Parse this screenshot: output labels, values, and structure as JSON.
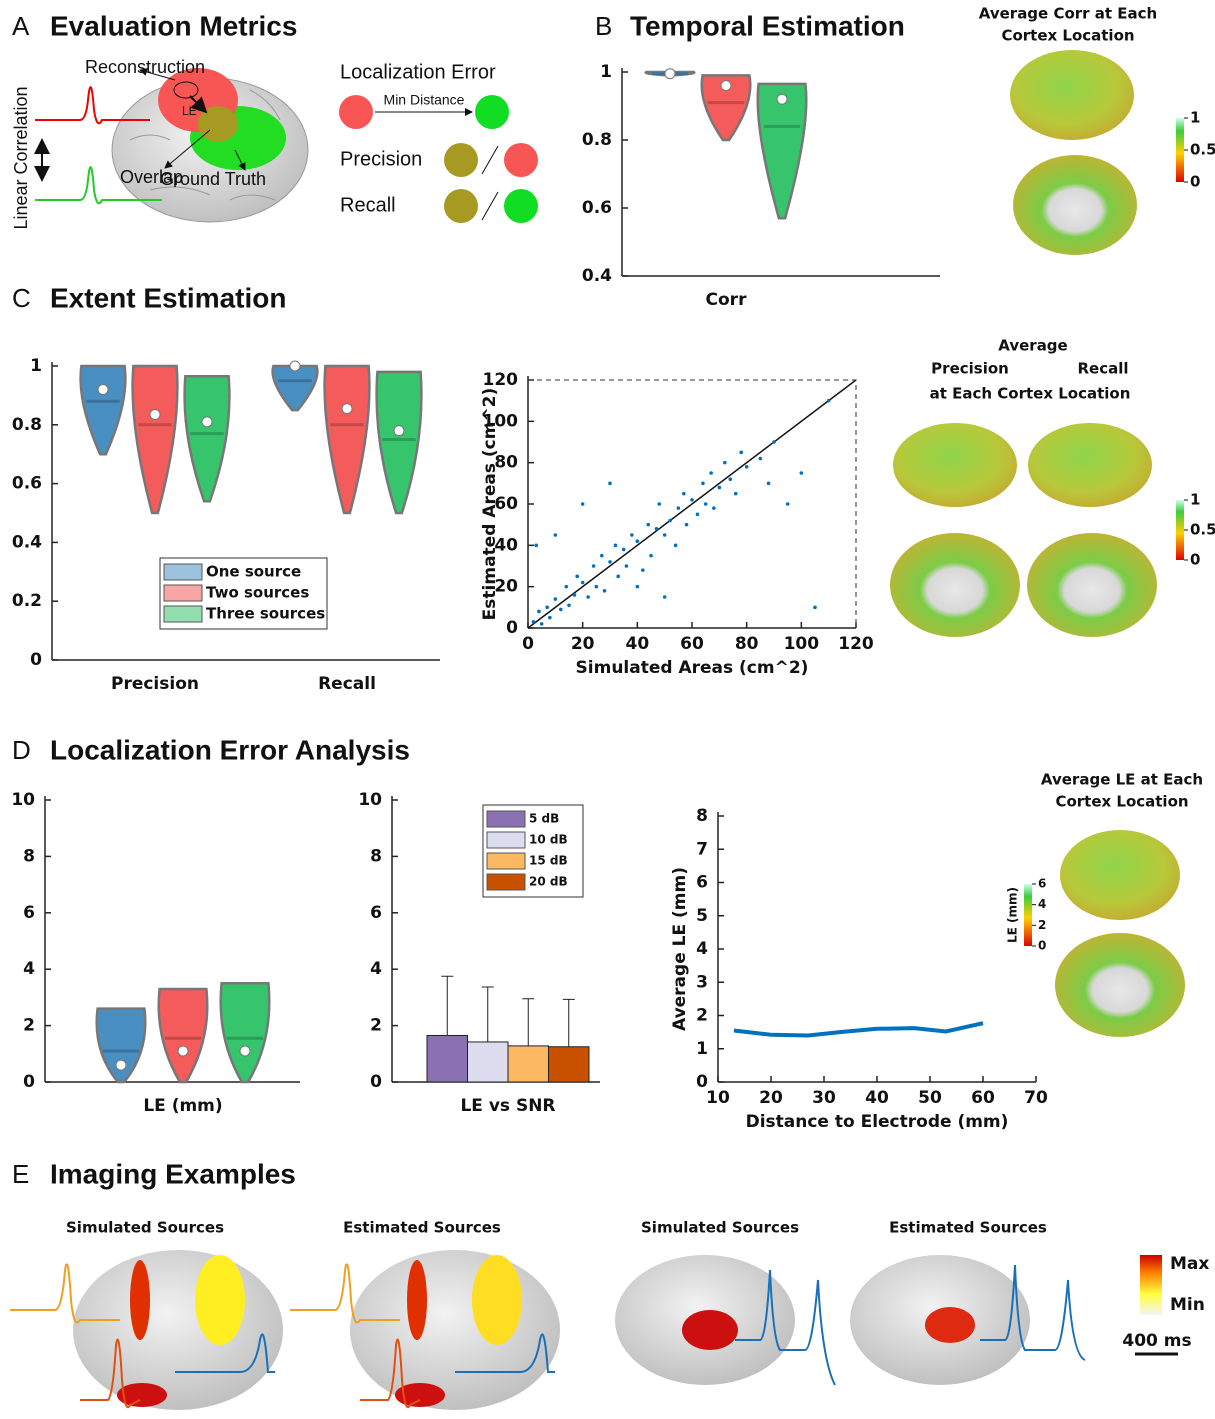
{
  "panels": [
    {
      "letter": "A",
      "title": "Evaluation Metrics"
    },
    {
      "letter": "B",
      "title": "Temporal Estimation"
    },
    {
      "letter": "C",
      "title": "Extent Estimation"
    },
    {
      "letter": "D",
      "title": "Localization Error Analysis"
    },
    {
      "letter": "E",
      "title": "Imaging Examples"
    }
  ],
  "diagram": {
    "reconstruction": "Reconstruction",
    "le": "LE",
    "overlap": "Overlap",
    "ground_truth": "Ground Truth",
    "linear_correlation": "Linear Correlation",
    "localization_error": "Localization Error",
    "min_distance": "Min Distance",
    "precision": "Precision",
    "recall": "Recall"
  },
  "maps": {
    "b": {
      "title_lines": [
        "Average Corr at Each",
        "Cortex Location"
      ],
      "colorbar_lim": [
        0,
        1
      ],
      "colorbar_ticks": [
        0,
        0.5,
        1
      ]
    },
    "c": {
      "title_lines": [
        "Average",
        "Precision",
        "Recall",
        "at Each Cortex Location"
      ],
      "colorbar_lim": [
        0,
        1
      ],
      "colorbar_ticks": [
        0,
        0.5,
        1
      ]
    },
    "d": {
      "title_lines": [
        "Average LE at Each",
        "Cortex Location"
      ],
      "colorbar_label": "LE (mm)",
      "colorbar_lim": [
        0,
        6
      ],
      "colorbar_ticks": [
        0,
        2,
        4,
        6
      ]
    }
  },
  "examples": {
    "titles": [
      "Simulated Sources",
      "Estimated Sources",
      "Simulated Sources",
      "Estimated Sources"
    ],
    "colorbar": [
      "Max",
      "Min"
    ],
    "scale": "400 ms"
  },
  "chart_data": [
    {
      "type": "violin",
      "categories": [
        "Corr"
      ],
      "ylim": [
        0.4,
        1
      ],
      "yticks": [
        0.4,
        0.6,
        0.8,
        1
      ],
      "series": [
        {
          "color": "#4a8fc2",
          "min": [
            0.99
          ],
          "max": [
            1
          ],
          "median": [
            0.995
          ],
          "mean": [
            0.995
          ]
        },
        {
          "color": "#f45b5b",
          "min": [
            0.8
          ],
          "max": [
            0.99
          ],
          "median": [
            0.91
          ],
          "mean": [
            0.96
          ]
        },
        {
          "color": "#36c46c",
          "min": [
            0.57
          ],
          "max": [
            0.965
          ],
          "median": [
            0.84
          ],
          "mean": [
            0.92
          ]
        }
      ]
    },
    {
      "type": "violin",
      "categories": [
        "Precision",
        "Recall"
      ],
      "ylim": [
        0,
        1
      ],
      "yticks": [
        0,
        0.2,
        0.4,
        0.6,
        0.8,
        1
      ],
      "legend": "lower-center",
      "series": [
        {
          "name": "One source",
          "color": "#4a8fc2",
          "min": [
            0.7,
            0.85
          ],
          "max": [
            1,
            1
          ],
          "median": [
            0.88,
            0.95
          ],
          "mean": [
            0.92,
            1
          ]
        },
        {
          "name": "Two sources",
          "color": "#f45b5b",
          "min": [
            0.5,
            0.5
          ],
          "max": [
            1,
            1
          ],
          "median": [
            0.8,
            0.8
          ],
          "mean": [
            0.835,
            0.855
          ]
        },
        {
          "name": "Three sources",
          "color": "#36c46c",
          "min": [
            0.54,
            0.5
          ],
          "max": [
            0.965,
            0.98
          ],
          "median": [
            0.77,
            0.75
          ],
          "mean": [
            0.81,
            0.78
          ]
        }
      ]
    },
    {
      "type": "scatter",
      "xlabel": "Simulated Areas (cm^2)",
      "ylabel": "Estimated Areas (cm^2)",
      "xlim": [
        0,
        120
      ],
      "ylim": [
        0,
        120
      ],
      "xticks": [
        0,
        20,
        40,
        60,
        80,
        100,
        120
      ],
      "yticks": [
        0,
        20,
        40,
        60,
        80,
        100,
        120
      ],
      "color": "#0072bd",
      "identity_line": true,
      "x": [
        2,
        4,
        5,
        7,
        8,
        10,
        12,
        14,
        15,
        17,
        18,
        20,
        22,
        24,
        25,
        27,
        28,
        30,
        32,
        33,
        35,
        36,
        38,
        40,
        42,
        44,
        45,
        47,
        48,
        50,
        52,
        54,
        55,
        57,
        58,
        60,
        62,
        64,
        65,
        67,
        68,
        70,
        72,
        74,
        76,
        78,
        80,
        85,
        88,
        90,
        95,
        100,
        105,
        110,
        3,
        10,
        20,
        30,
        40,
        50
      ],
      "values": [
        3,
        8,
        2,
        10,
        5,
        14,
        9,
        20,
        11,
        16,
        25,
        22,
        15,
        30,
        20,
        35,
        18,
        32,
        40,
        25,
        38,
        30,
        45,
        42,
        28,
        50,
        35,
        48,
        60,
        45,
        52,
        40,
        58,
        65,
        50,
        62,
        55,
        70,
        60,
        75,
        58,
        68,
        80,
        72,
        65,
        85,
        78,
        82,
        70,
        90,
        60,
        75,
        10,
        110,
        40,
        45,
        60,
        70,
        20,
        15
      ]
    },
    {
      "type": "violin",
      "categories": [
        "LE (mm)"
      ],
      "ylim": [
        0,
        10
      ],
      "yticks": [
        0,
        2,
        4,
        6,
        8,
        10
      ],
      "series": [
        {
          "color": "#4a8fc2",
          "min": [
            0
          ],
          "max": [
            2.6
          ],
          "median": [
            1.1
          ],
          "mean": [
            0.6
          ]
        },
        {
          "color": "#f45b5b",
          "min": [
            0
          ],
          "max": [
            3.3
          ],
          "median": [
            1.55
          ],
          "mean": [
            1.1
          ]
        },
        {
          "color": "#36c46c",
          "min": [
            0
          ],
          "max": [
            3.5
          ],
          "median": [
            1.55
          ],
          "mean": [
            1.1
          ]
        }
      ]
    },
    {
      "type": "bar",
      "categories": [
        "LE vs SNR"
      ],
      "ylim": [
        0,
        10
      ],
      "yticks": [
        0,
        2,
        4,
        6,
        8,
        10
      ],
      "legend": "upper-right",
      "series": [
        {
          "name": "5 dB",
          "color": "#8a72b2",
          "values": [
            1.65
          ],
          "errors": [
            2.1
          ]
        },
        {
          "name": "10 dB",
          "color": "#dcdcee",
          "values": [
            1.42
          ],
          "errors": [
            1.95
          ]
        },
        {
          "name": "15 dB",
          "color": "#fdb863",
          "values": [
            1.28
          ],
          "errors": [
            1.67
          ]
        },
        {
          "name": "20 dB",
          "color": "#c85200",
          "values": [
            1.25
          ],
          "errors": [
            1.68
          ]
        }
      ]
    },
    {
      "type": "line",
      "xlabel": "Distance to Electrode (mm)",
      "ylabel": "Average LE (mm)",
      "xlim": [
        10,
        70
      ],
      "ylim": [
        0,
        8
      ],
      "xticks": [
        10,
        20,
        30,
        40,
        50,
        60,
        70
      ],
      "yticks": [
        0,
        1,
        2,
        3,
        4,
        5,
        6,
        7,
        8
      ],
      "color": "#0072bd",
      "x": [
        13,
        20,
        27,
        33,
        40,
        47,
        53,
        60
      ],
      "values": [
        1.55,
        1.42,
        1.4,
        1.5,
        1.6,
        1.62,
        1.52,
        1.77
      ]
    }
  ]
}
